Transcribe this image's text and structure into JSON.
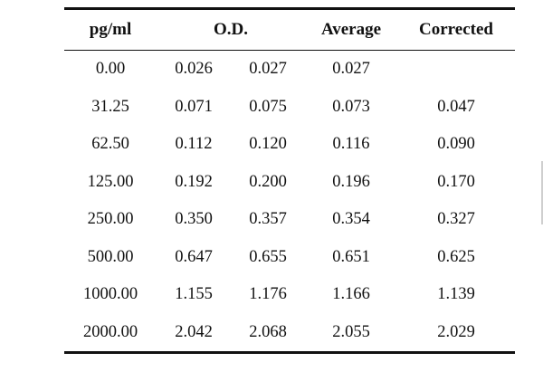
{
  "table": {
    "headers": {
      "concentration": "pg/ml",
      "od": "O.D.",
      "average": "Average",
      "corrected": "Corrected"
    },
    "rows": [
      {
        "conc": "0.00",
        "od1": "0.026",
        "od2": "0.027",
        "avg": "0.027",
        "corr": ""
      },
      {
        "conc": "31.25",
        "od1": "0.071",
        "od2": "0.075",
        "avg": "0.073",
        "corr": "0.047"
      },
      {
        "conc": "62.50",
        "od1": "0.112",
        "od2": "0.120",
        "avg": "0.116",
        "corr": "0.090"
      },
      {
        "conc": "125.00",
        "od1": "0.192",
        "od2": "0.200",
        "avg": "0.196",
        "corr": "0.170"
      },
      {
        "conc": "250.00",
        "od1": "0.350",
        "od2": "0.357",
        "avg": "0.354",
        "corr": "0.327"
      },
      {
        "conc": "500.00",
        "od1": "0.647",
        "od2": "0.655",
        "avg": "0.651",
        "corr": "0.625"
      },
      {
        "conc": "1000.00",
        "od1": "1.155",
        "od2": "1.176",
        "avg": "1.166",
        "corr": "1.139"
      },
      {
        "conc": "2000.00",
        "od1": "2.042",
        "od2": "2.068",
        "avg": "2.055",
        "corr": "2.029"
      }
    ]
  }
}
